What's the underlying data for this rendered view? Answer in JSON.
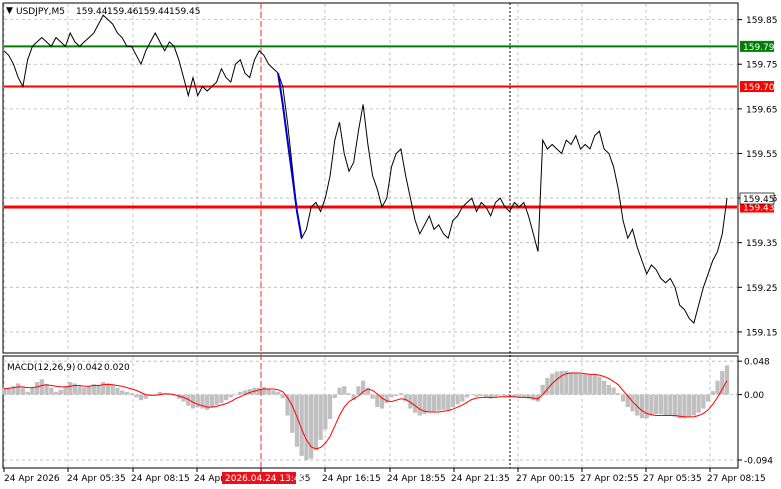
{
  "chart_data": [
    {
      "type": "line",
      "title": "USDJPY,M5",
      "ohlc_header": [
        "159.44",
        "159.46",
        "159.44",
        "159.45"
      ],
      "symbol_marker": "▼",
      "x_ticks": [
        "24 Apr 2026",
        "24 Apr 05:35",
        "24 Apr 08:15",
        "24 Apr",
        "35",
        "24 Apr 16:15",
        "24 Apr 18:55",
        "24 Apr 21:35",
        "27 Apr 00:15",
        "27 Apr 02:55",
        "27 Apr 05:35",
        "27 Apr 08:15"
      ],
      "crosshair_time": "2026.04.24 13:40",
      "y_ticks": [
        "159.85",
        "159.75",
        "159.65",
        "159.55",
        "159.45",
        "159.35",
        "159.25",
        "159.15"
      ],
      "ylim": [
        159.105,
        159.885
      ],
      "grid": true,
      "horizontal_levels": [
        {
          "label": "159.79",
          "value": 159.79,
          "color": "#008000"
        },
        {
          "label": "159.70",
          "value": 159.7,
          "color": "#ff0000"
        },
        {
          "label": "159.43",
          "value": 159.43,
          "color": "#ff0000"
        }
      ],
      "current_price": "159.45",
      "series": [
        {
          "color": "#000000",
          "values": [
            159.78,
            159.77,
            159.75,
            159.72,
            159.7,
            159.76,
            159.79,
            159.8,
            159.81,
            159.8,
            159.79,
            159.81,
            159.8,
            159.79,
            159.82,
            159.8,
            159.79,
            159.8,
            159.81,
            159.82,
            159.84,
            159.86,
            159.85,
            159.84,
            159.82,
            159.81,
            159.79,
            159.79,
            159.77,
            159.75,
            159.78,
            159.8,
            159.82,
            159.8,
            159.78,
            159.8,
            159.79,
            159.76,
            159.72,
            159.68,
            159.72,
            159.68,
            159.7,
            159.69,
            159.7,
            159.71,
            159.74,
            159.72,
            159.71,
            159.75,
            159.76,
            159.73,
            159.72,
            159.76,
            159.78,
            159.77,
            159.75,
            159.74,
            159.73,
            159.7,
            159.62,
            159.52,
            159.42,
            159.36,
            159.38,
            159.43,
            159.44,
            159.42,
            159.45,
            159.5,
            159.58,
            159.62,
            159.55,
            159.51,
            159.53,
            159.6,
            159.66,
            159.57,
            159.5,
            159.47,
            159.43,
            159.45,
            159.52,
            159.55,
            159.56,
            159.5,
            159.45,
            159.4,
            159.37,
            159.39,
            159.41,
            159.38,
            159.39,
            159.37,
            159.36,
            159.4,
            159.41,
            159.43,
            159.44,
            159.45,
            159.42,
            159.44,
            159.43,
            159.41,
            159.44,
            159.45,
            159.43,
            159.42,
            159.44,
            159.43,
            159.44,
            159.41,
            159.37,
            159.33,
            159.58,
            159.56,
            159.57,
            159.56,
            159.55,
            159.58,
            159.57,
            159.59,
            159.56,
            159.57,
            159.56,
            159.59,
            159.6,
            159.56,
            159.55,
            159.52,
            159.47,
            159.4,
            159.36,
            159.38,
            159.34,
            159.31,
            159.28,
            159.3,
            159.29,
            159.27,
            159.26,
            159.27,
            159.25,
            159.21,
            159.2,
            159.18,
            159.17,
            159.21,
            159.25,
            159.28,
            159.31,
            159.33,
            159.37,
            159.45
          ]
        },
        {
          "color": "#0000cc",
          "values": [
            159.73,
            159.66,
            159.58,
            159.5,
            159.42,
            159.36
          ]
        }
      ]
    },
    {
      "type": "bar",
      "title": "MACD(12,26,9)",
      "values_text": [
        "0.042",
        "0.020"
      ],
      "y_ticks": [
        "0.048",
        "0.00",
        "-0.094"
      ],
      "ylim": [
        -0.104,
        0.054
      ],
      "histogram": [
        0.01,
        0.009,
        0.012,
        0.016,
        0.01,
        0.004,
        0.01,
        0.018,
        0.022,
        0.015,
        0.01,
        0.004,
        0.007,
        0.012,
        0.018,
        0.016,
        0.012,
        0.01,
        0.012,
        0.015,
        0.014,
        0.018,
        0.016,
        0.013,
        0.01,
        0.006,
        0.004,
        0.002,
        -0.004,
        -0.008,
        -0.006,
        -0.002,
        0.0,
        0.004,
        0.002,
        0.0,
        -0.001,
        -0.006,
        -0.01,
        -0.016,
        -0.02,
        -0.018,
        -0.02,
        -0.022,
        -0.018,
        -0.015,
        -0.012,
        -0.008,
        -0.004,
        0.0,
        0.004,
        0.006,
        0.008,
        0.01,
        0.01,
        0.011,
        0.009,
        0.006,
        0.004,
        -0.005,
        -0.03,
        -0.055,
        -0.075,
        -0.088,
        -0.094,
        -0.092,
        -0.08,
        -0.065,
        -0.05,
        -0.035,
        -0.005,
        0.01,
        0.012,
        0.002,
        -0.008,
        0.012,
        0.02,
        0.01,
        -0.006,
        -0.018,
        -0.02,
        -0.012,
        -0.004,
        -0.002,
        0.002,
        -0.01,
        -0.02,
        -0.026,
        -0.03,
        -0.028,
        -0.025,
        -0.024,
        -0.023,
        -0.022,
        -0.022,
        -0.018,
        -0.014,
        -0.01,
        -0.004,
        0.0,
        -0.003,
        -0.002,
        -0.004,
        -0.006,
        -0.003,
        -0.001,
        -0.002,
        -0.004,
        -0.003,
        -0.004,
        -0.004,
        -0.006,
        -0.008,
        -0.01,
        0.014,
        0.024,
        0.03,
        0.033,
        0.034,
        0.034,
        0.032,
        0.031,
        0.03,
        0.029,
        0.028,
        0.028,
        0.026,
        0.02,
        0.014,
        0.01,
        0.002,
        -0.01,
        -0.018,
        -0.024,
        -0.03,
        -0.034,
        -0.034,
        -0.03,
        -0.028,
        -0.028,
        -0.03,
        -0.03,
        -0.032,
        -0.034,
        -0.034,
        -0.032,
        -0.03,
        -0.026,
        -0.02,
        -0.01,
        0.005,
        0.02,
        0.034,
        0.042
      ],
      "signal": [
        0.008,
        0.009,
        0.01,
        0.011,
        0.011,
        0.01,
        0.01,
        0.011,
        0.013,
        0.014,
        0.013,
        0.012,
        0.011,
        0.011,
        0.012,
        0.013,
        0.013,
        0.012,
        0.012,
        0.013,
        0.013,
        0.014,
        0.015,
        0.014,
        0.013,
        0.012,
        0.01,
        0.008,
        0.006,
        0.003,
        0.0,
        -0.001,
        -0.001,
        0.0,
        0.001,
        0.001,
        0.0,
        -0.002,
        -0.004,
        -0.007,
        -0.011,
        -0.014,
        -0.016,
        -0.018,
        -0.018,
        -0.017,
        -0.015,
        -0.013,
        -0.01,
        -0.006,
        -0.003,
        0.0,
        0.003,
        0.005,
        0.007,
        0.008,
        0.008,
        0.008,
        0.007,
        0.004,
        -0.004,
        -0.016,
        -0.032,
        -0.05,
        -0.065,
        -0.075,
        -0.078,
        -0.076,
        -0.07,
        -0.06,
        -0.045,
        -0.03,
        -0.018,
        -0.01,
        -0.006,
        -0.002,
        0.004,
        0.008,
        0.006,
        0.001,
        -0.005,
        -0.009,
        -0.01,
        -0.008,
        -0.006,
        -0.007,
        -0.011,
        -0.016,
        -0.021,
        -0.024,
        -0.025,
        -0.025,
        -0.025,
        -0.024,
        -0.023,
        -0.021,
        -0.018,
        -0.015,
        -0.011,
        -0.007,
        -0.005,
        -0.004,
        -0.004,
        -0.004,
        -0.004,
        -0.003,
        -0.003,
        -0.003,
        -0.003,
        -0.004,
        -0.004,
        -0.004,
        -0.005,
        -0.006,
        0.0,
        0.008,
        0.016,
        0.022,
        0.027,
        0.03,
        0.031,
        0.031,
        0.031,
        0.03,
        0.029,
        0.029,
        0.028,
        0.026,
        0.023,
        0.019,
        0.014,
        0.006,
        -0.002,
        -0.01,
        -0.017,
        -0.023,
        -0.027,
        -0.029,
        -0.03,
        -0.03,
        -0.03,
        -0.03,
        -0.03,
        -0.031,
        -0.032,
        -0.032,
        -0.032,
        -0.03,
        -0.027,
        -0.022,
        -0.014,
        -0.004,
        0.008,
        0.02
      ]
    }
  ]
}
